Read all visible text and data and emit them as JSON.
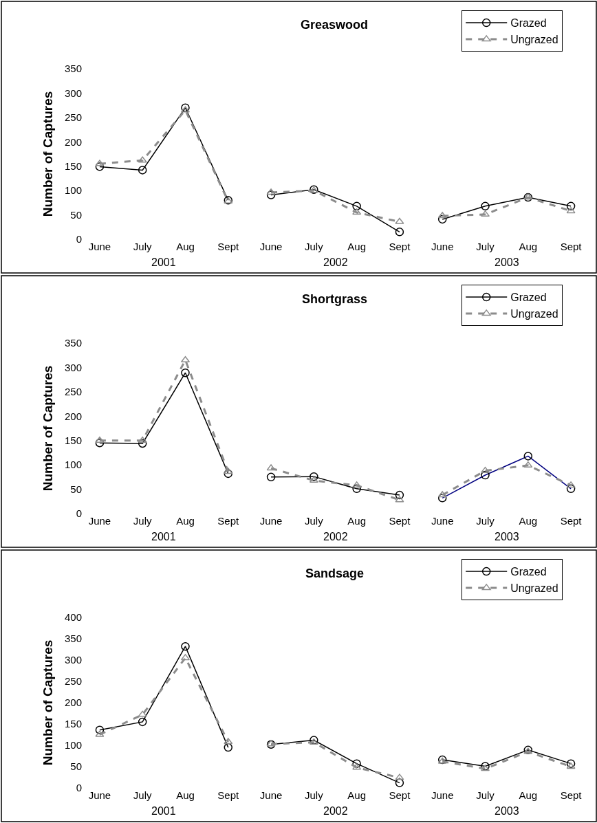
{
  "chart_data": [
    {
      "type": "line",
      "title": "Greaswood",
      "ylabel": "Number of Captures",
      "categories": [
        "June",
        "July",
        "Aug",
        "Sept",
        "June",
        "July",
        "Aug",
        "Sept",
        "June",
        "July",
        "Aug",
        "Sept"
      ],
      "ylim": [
        0,
        350
      ],
      "yticks": [
        0,
        50,
        100,
        150,
        200,
        250,
        300,
        350
      ],
      "legend": "top right",
      "annotations": [
        "2001",
        "2002",
        "2003"
      ],
      "series": [
        {
          "name": "Grazed",
          "color": "#000000",
          "marker": "circle",
          "line_style": "solid",
          "values": [
            149,
            142,
            270,
            80,
            null,
            null,
            null,
            null,
            null,
            null,
            null,
            null
          ]
        },
        {
          "name": "Ungrazed",
          "color": "#8c8c8c",
          "marker": "triangle",
          "line_style": "dashed",
          "values": [
            155,
            162,
            265,
            78,
            null,
            null,
            null,
            null,
            null,
            null,
            null,
            null
          ]
        },
        {
          "color": "#000000",
          "marker": "circle",
          "line_style": "solid",
          "values": [
            null,
            null,
            null,
            null,
            91,
            102,
            68,
            15,
            null,
            null,
            null,
            null
          ]
        },
        {
          "color": "#8c8c8c",
          "marker": "triangle",
          "line_style": "dashed",
          "values": [
            null,
            null,
            null,
            null,
            96,
            100,
            55,
            36,
            null,
            null,
            null,
            null
          ]
        },
        {
          "color": "#000000",
          "marker": "circle",
          "line_style": "solid",
          "values": [
            null,
            null,
            null,
            null,
            null,
            null,
            null,
            null,
            41,
            68,
            86,
            68
          ]
        },
        {
          "color": "#8c8c8c",
          "marker": "triangle",
          "line_style": "dashed",
          "values": [
            null,
            null,
            null,
            null,
            null,
            null,
            null,
            null,
            48,
            51,
            86,
            58
          ]
        }
      ]
    },
    {
      "type": "line",
      "title": "Shortgrass",
      "ylabel": "Number of Captures",
      "categories": [
        "June",
        "July",
        "Aug",
        "Sept",
        "June",
        "July",
        "Aug",
        "Sept",
        "June",
        "July",
        "Aug",
        "Sept"
      ],
      "ylim": [
        0,
        350
      ],
      "yticks": [
        0,
        50,
        100,
        150,
        200,
        250,
        300,
        350
      ],
      "legend": "top right",
      "annotations": [
        "2001",
        "2002",
        "2003"
      ],
      "series": [
        {
          "name": "Grazed",
          "color": "#000000",
          "marker": "circle",
          "line_style": "solid",
          "values": [
            145,
            144,
            289,
            82,
            null,
            null,
            null,
            null,
            null,
            null,
            null,
            null
          ]
        },
        {
          "name": "Ungrazed",
          "color": "#8c8c8c",
          "marker": "triangle",
          "line_style": "dashed",
          "values": [
            150,
            150,
            315,
            86,
            null,
            null,
            null,
            null,
            null,
            null,
            null,
            null
          ]
        },
        {
          "color": "#000000",
          "marker": "circle",
          "line_style": "solid",
          "values": [
            null,
            null,
            null,
            null,
            75,
            76,
            51,
            38,
            null,
            null,
            null,
            null
          ]
        },
        {
          "color": "#8c8c8c",
          "marker": "triangle",
          "line_style": "dashed",
          "values": [
            null,
            null,
            null,
            null,
            93,
            68,
            58,
            28,
            null,
            null,
            null,
            null
          ]
        },
        {
          "color": "#000080",
          "marker": "circle",
          "line_style": "solid",
          "values": [
            null,
            null,
            null,
            null,
            null,
            null,
            null,
            null,
            32,
            79,
            118,
            51
          ]
        },
        {
          "color": "#8c8c8c",
          "marker": "triangle",
          "line_style": "dashed",
          "values": [
            null,
            null,
            null,
            null,
            null,
            null,
            null,
            null,
            38,
            88,
            99,
            58
          ]
        }
      ]
    },
    {
      "type": "line",
      "title": "Sandsage",
      "ylabel": "Number of Captures",
      "categories": [
        "June",
        "July",
        "Aug",
        "Sept",
        "June",
        "July",
        "Aug",
        "Sept",
        "June",
        "July",
        "Aug",
        "Sept"
      ],
      "ylim": [
        0,
        400
      ],
      "yticks": [
        0,
        50,
        100,
        150,
        200,
        250,
        300,
        350,
        400
      ],
      "legend": "top right",
      "annotations": [
        "2001",
        "2002",
        "2003"
      ],
      "series": [
        {
          "name": "Grazed",
          "color": "#000000",
          "marker": "circle",
          "line_style": "solid",
          "values": [
            136,
            155,
            332,
            95,
            null,
            null,
            null,
            null,
            null,
            null,
            null,
            null
          ]
        },
        {
          "name": "Ungrazed",
          "color": "#8c8c8c",
          "marker": "triangle",
          "line_style": "dashed",
          "values": [
            125,
            172,
            305,
            108,
            null,
            null,
            null,
            null,
            null,
            null,
            null,
            null
          ]
        },
        {
          "color": "#000000",
          "marker": "circle",
          "line_style": "solid",
          "values": [
            null,
            null,
            null,
            null,
            102,
            112,
            57,
            12,
            null,
            null,
            null,
            null
          ]
        },
        {
          "color": "#8c8c8c",
          "marker": "triangle",
          "line_style": "dashed",
          "values": [
            null,
            null,
            null,
            null,
            103,
            107,
            48,
            24,
            null,
            null,
            null,
            null
          ]
        },
        {
          "color": "#000000",
          "marker": "circle",
          "line_style": "solid",
          "values": [
            null,
            null,
            null,
            null,
            null,
            null,
            null,
            null,
            66,
            51,
            89,
            57
          ]
        },
        {
          "color": "#8c8c8c",
          "marker": "triangle",
          "line_style": "dashed",
          "values": [
            null,
            null,
            null,
            null,
            null,
            null,
            null,
            null,
            62,
            45,
            85,
            50
          ]
        }
      ]
    }
  ]
}
